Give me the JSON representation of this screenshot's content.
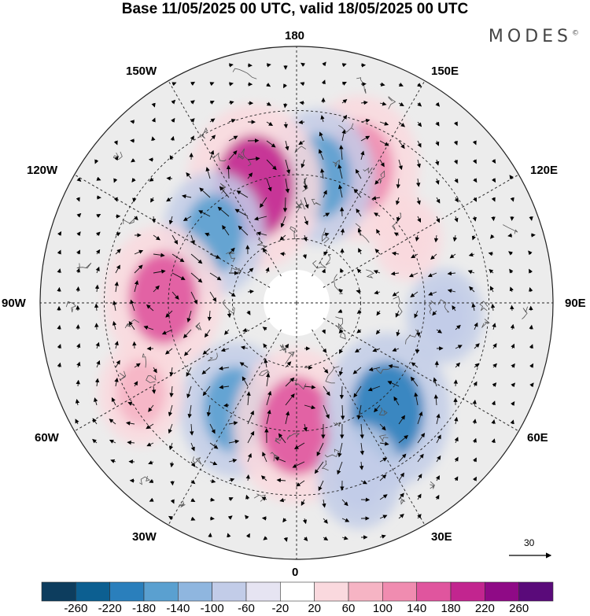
{
  "title": "Base 11/05/2025 00 UTC, valid 18/05/2025 00 UTC",
  "brand": "MODES",
  "brand_mark": "©",
  "longitude_labels": {
    "top": "180",
    "bottom": "0",
    "left": "90W",
    "right": "90E",
    "upper_left": "150W",
    "upper_right": "150E",
    "mid_upper_left": "120W",
    "mid_upper_right": "120E",
    "mid_lower_left": "60W",
    "mid_lower_right": "60E",
    "lower_left": "30W",
    "lower_right": "30E"
  },
  "vector_reference": "30",
  "colorbar": {
    "ticks": [
      "-260",
      "-220",
      "-180",
      "-140",
      "-100",
      "-60",
      "-20",
      "20",
      "60",
      "100",
      "140",
      "180",
      "220",
      "260"
    ],
    "colors": [
      "#0d3d5e",
      "#0c5f91",
      "#2a7fbc",
      "#5aa0d0",
      "#8fb6df",
      "#c2cce8",
      "#e6e4f2",
      "#ffffff",
      "#fad9de",
      "#f6b4c4",
      "#f08cb0",
      "#e0559e",
      "#c2258f",
      "#8f0a86",
      "#5a0a7a"
    ]
  },
  "anomaly_centers": [
    {
      "lon": 155,
      "lat_from_pole": 0.58,
      "value": 180,
      "color": "#f08cb0"
    },
    {
      "lon": 170,
      "lat_from_pole": 0.5,
      "value": -160,
      "color": "#5aa0d0"
    },
    {
      "lon": 200,
      "lat_from_pole": 0.48,
      "value": 220,
      "color": "#c2258f"
    },
    {
      "lon": 230,
      "lat_from_pole": 0.42,
      "value": -140,
      "color": "#5aa0d0"
    },
    {
      "lon": 268,
      "lat_from_pole": 0.52,
      "value": 180,
      "color": "#e0559e"
    },
    {
      "lon": 330,
      "lat_from_pole": 0.48,
      "value": -160,
      "color": "#5aa0d0"
    },
    {
      "lon": 0,
      "lat_from_pole": 0.48,
      "value": 200,
      "color": "#e0559e"
    },
    {
      "lon": 40,
      "lat_from_pole": 0.55,
      "value": -200,
      "color": "#2a7fbc"
    },
    {
      "lon": 85,
      "lat_from_pole": 0.58,
      "value": -80,
      "color": "#c2cce8"
    },
    {
      "lon": 300,
      "lat_from_pole": 0.7,
      "value": 100,
      "color": "#f6b4c4"
    },
    {
      "lon": 20,
      "lat_from_pole": 0.72,
      "value": -100,
      "color": "#c2cce8"
    },
    {
      "lon": 120,
      "lat_from_pole": 0.5,
      "value": 60,
      "color": "#fad9de"
    }
  ]
}
